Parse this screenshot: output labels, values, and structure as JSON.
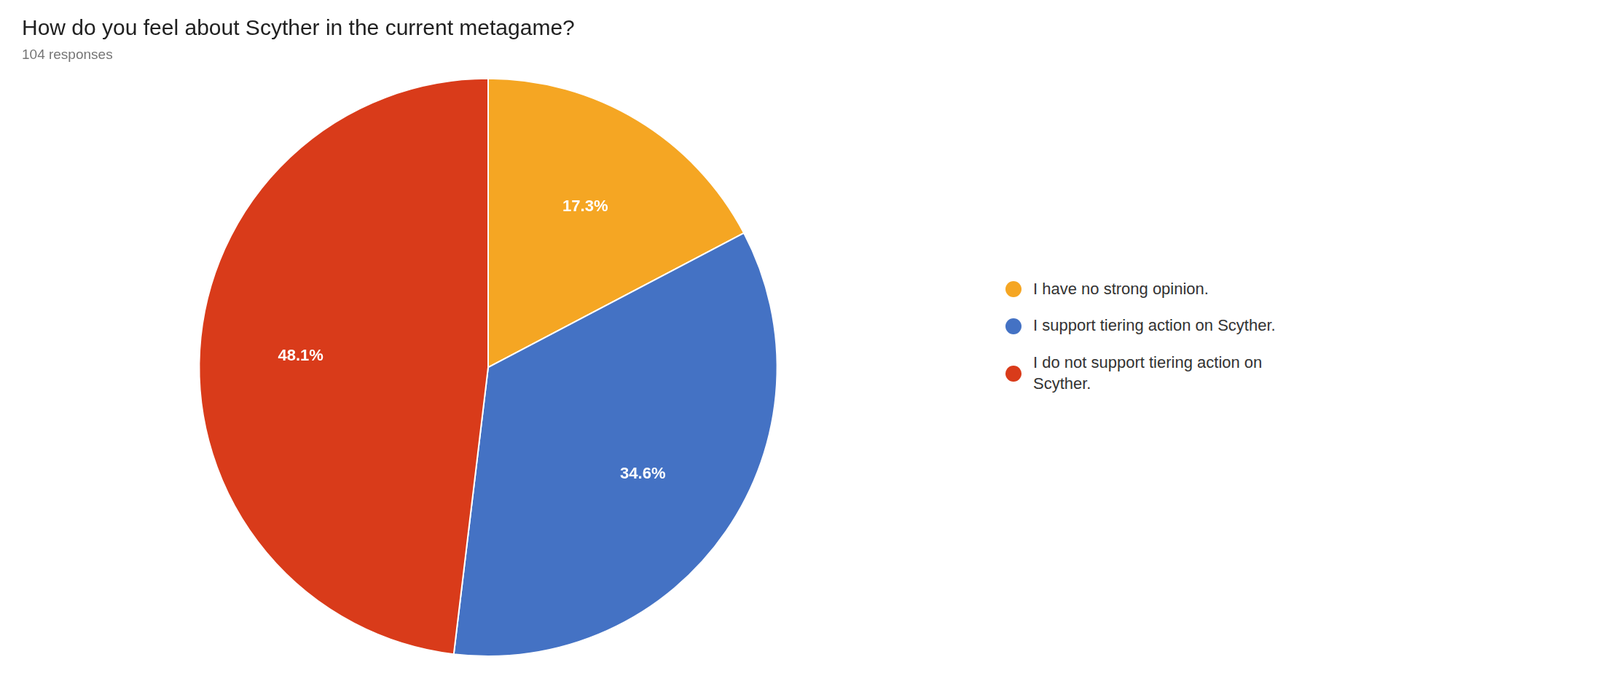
{
  "chart_data": {
    "type": "pie",
    "title": "How do you feel about Scyther in the current metagame?",
    "subtitle": "104 responses",
    "categories": [
      "I have no strong opinion.",
      "I support tiering action on Scyther.",
      "I do not support tiering action on\nScyther."
    ],
    "values": [
      17.3,
      34.6,
      48.1
    ],
    "value_labels": [
      "17.3%",
      "34.6%",
      "48.1%"
    ],
    "colors": [
      "#f5a623",
      "#4472c4",
      "#d93b1a"
    ],
    "data_labels": true,
    "legend": "right"
  }
}
